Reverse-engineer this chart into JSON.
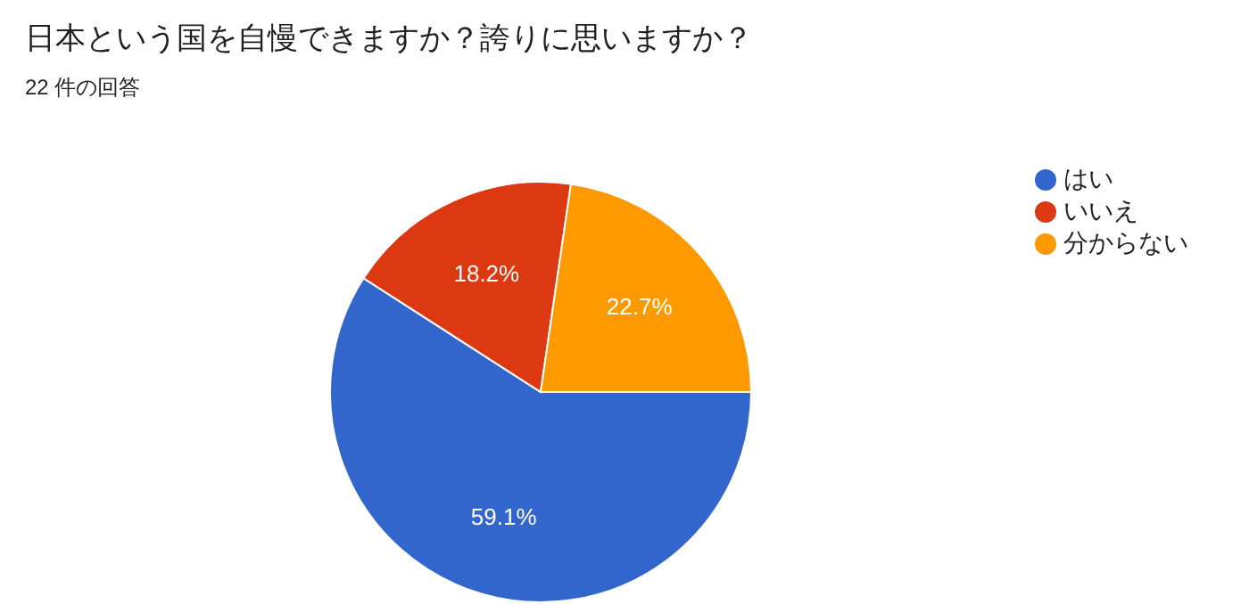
{
  "chart_data": {
    "type": "pie",
    "title": "日本という国を自慢できますか？誇りに思いますか？",
    "subtitle": "22 件の回答",
    "categories": [
      "はい",
      "いいえ",
      "分からない"
    ],
    "values": [
      59.1,
      18.2,
      22.7
    ],
    "colors": [
      "#3366cc",
      "#dc3912",
      "#ff9900"
    ],
    "value_labels": [
      "59.1%",
      "18.2%",
      "22.7%"
    ],
    "legend": "right"
  }
}
